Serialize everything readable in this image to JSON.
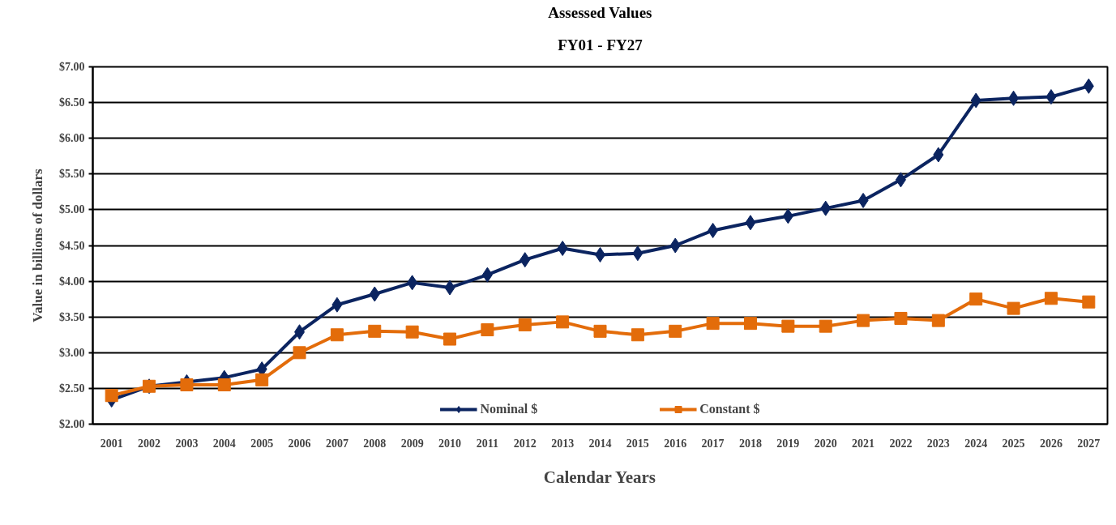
{
  "chart_data": {
    "type": "line",
    "title": "Assessed Values",
    "subtitle": "FY01 - FY27",
    "xlabel": "Calendar Years",
    "ylabel": "Value in billions of dollars",
    "categories": [
      "2001",
      "2002",
      "2003",
      "2004",
      "2005",
      "2006",
      "2007",
      "2008",
      "2009",
      "2010",
      "2011",
      "2012",
      "2013",
      "2014",
      "2015",
      "2016",
      "2017",
      "2018",
      "2019",
      "2020",
      "2021",
      "2022",
      "2023",
      "2024",
      "2025",
      "2026",
      "2027"
    ],
    "series": [
      {
        "name": "Nominal $",
        "color": "#0b2460",
        "marker": "diamond",
        "values": [
          2.34,
          2.53,
          2.59,
          2.65,
          2.77,
          3.29,
          3.67,
          3.82,
          3.98,
          3.91,
          4.09,
          4.3,
          4.46,
          4.37,
          4.39,
          4.5,
          4.71,
          4.82,
          4.91,
          5.02,
          5.13,
          5.42,
          5.77,
          6.53,
          6.56,
          6.58,
          6.73
        ]
      },
      {
        "name": "Constant $",
        "color": "#e36c0a",
        "marker": "square",
        "values": [
          2.4,
          2.53,
          2.55,
          2.55,
          2.62,
          3.0,
          3.25,
          3.3,
          3.29,
          3.19,
          3.32,
          3.39,
          3.43,
          3.3,
          3.25,
          3.3,
          3.41,
          3.41,
          3.37,
          3.37,
          3.45,
          3.48,
          3.45,
          3.75,
          3.62,
          3.76,
          3.71
        ]
      }
    ],
    "ylim": [
      2,
      7
    ],
    "yticks": [
      {
        "value": 2,
        "label": "$2.00"
      },
      {
        "value": 2.5,
        "label": "$2.50"
      },
      {
        "value": 3,
        "label": "$3.00"
      },
      {
        "value": 3.5,
        "label": "$3.50"
      },
      {
        "value": 4,
        "label": "$4.00"
      },
      {
        "value": 4.5,
        "label": "$4.50"
      },
      {
        "value": 5,
        "label": "$5.00"
      },
      {
        "value": 5.5,
        "label": "$5.50"
      },
      {
        "value": 6,
        "label": "$6.00"
      },
      {
        "value": 6.5,
        "label": "$6.50"
      },
      {
        "value": 7,
        "label": "$7.00"
      }
    ],
    "grid": "y",
    "legend": "bottom",
    "line_style": "solid"
  }
}
